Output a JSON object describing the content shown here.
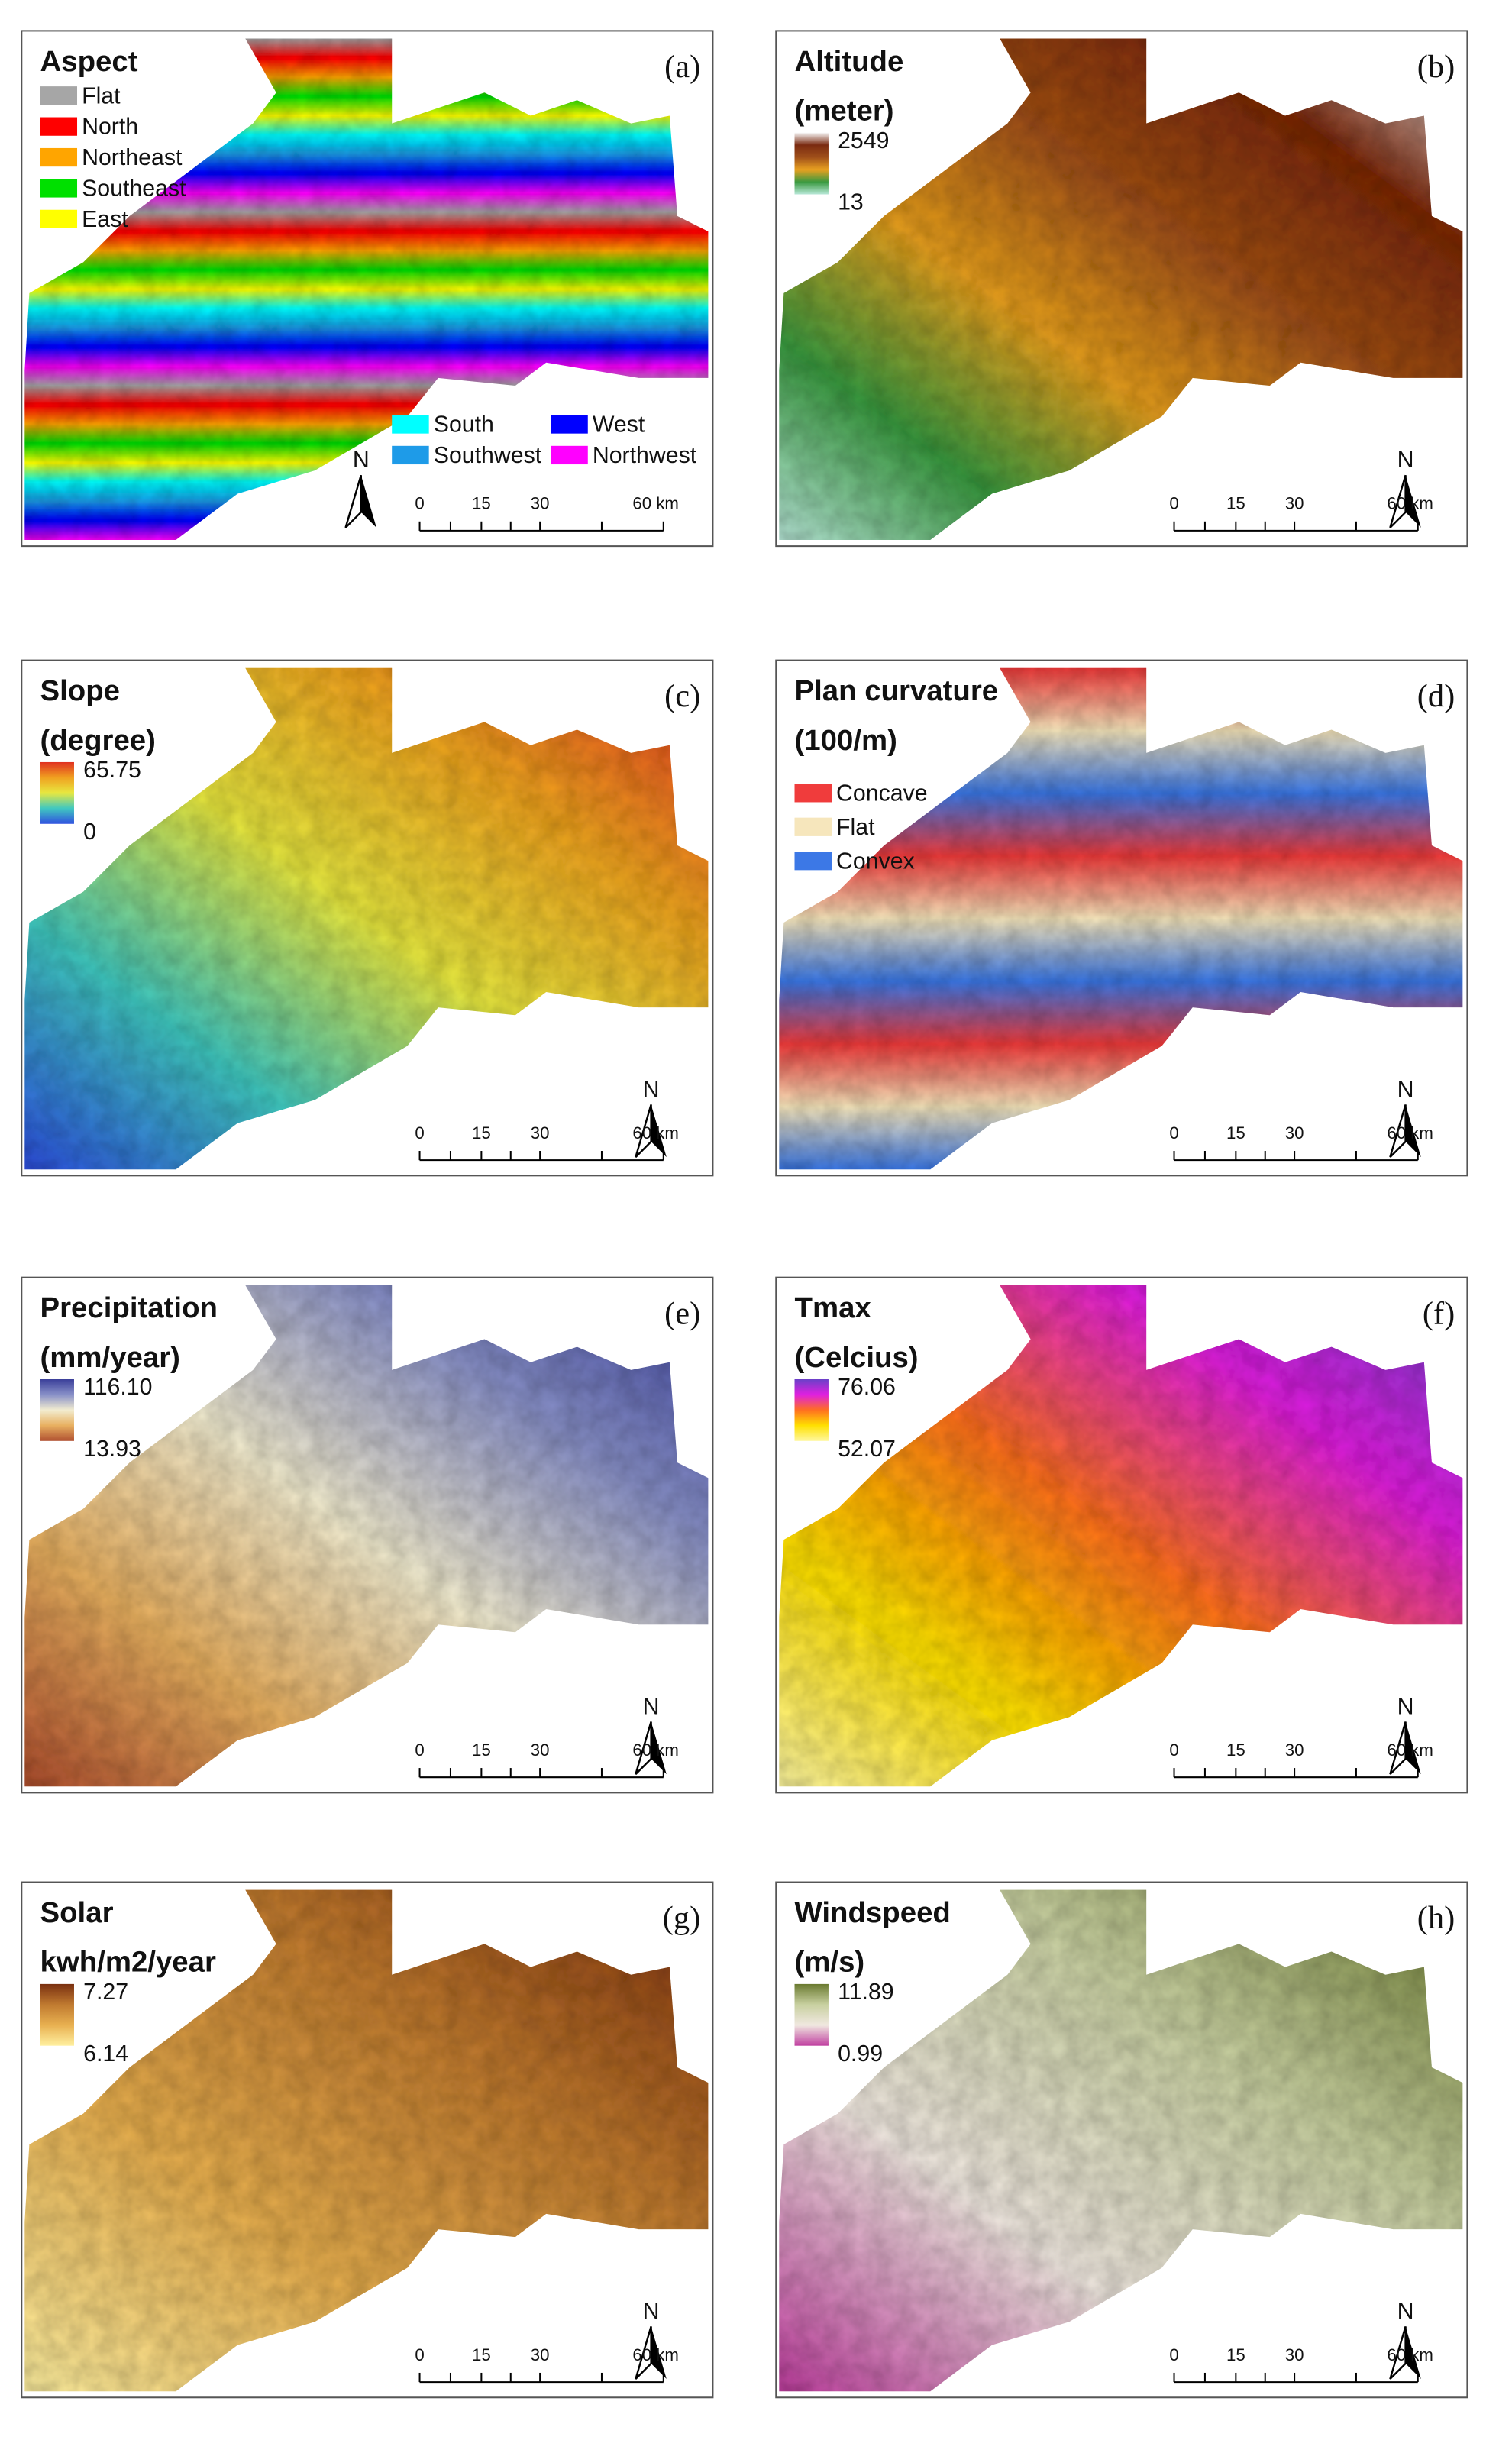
{
  "figure": {
    "north": "N",
    "scale_labels": [
      "0",
      "15",
      "30",
      "60 km"
    ],
    "panels": [
      {
        "letter": "(a)",
        "title": "Aspect",
        "classes": [
          {
            "label": "Flat",
            "color": "#a6a6a6"
          },
          {
            "label": "North",
            "color": "#ff0000"
          },
          {
            "label": "Northeast",
            "color": "#ffa500"
          },
          {
            "label": "Southeast",
            "color": "#00e000"
          },
          {
            "label": "East",
            "color": "#ffff00"
          },
          {
            "label": "South",
            "color": "#00ffff"
          },
          {
            "label": "Southwest",
            "color": "#1e9be8"
          },
          {
            "label": "West",
            "color": "#0000ff"
          },
          {
            "label": "Northwest",
            "color": "#ff00ff"
          }
        ]
      },
      {
        "letter": "(b)",
        "title": "Altitude",
        "unit": "(meter)",
        "max": "2549",
        "min": "13",
        "colors": [
          "#f8f8f8",
          "#7a2a10",
          "#a0501a",
          "#e8a020",
          "#3a9a40",
          "#b8e8d8"
        ]
      },
      {
        "letter": "(c)",
        "title": "Slope",
        "unit": "(degree)",
        "max": "65.75",
        "min": "0",
        "colors": [
          "#e03020",
          "#f0a020",
          "#e8e840",
          "#40c8c0",
          "#3050e0"
        ]
      },
      {
        "letter": "(d)",
        "title": "Plan curvature",
        "unit": "(100/m)",
        "classes": [
          {
            "label": "Concave",
            "color": "#f03c3c"
          },
          {
            "label": "Flat",
            "color": "#f6e6bc"
          },
          {
            "label": "Convex",
            "color": "#3c78e6"
          }
        ]
      },
      {
        "letter": "(e)",
        "title": "Precipitation",
        "unit": "(mm/year)",
        "max": "116.10",
        "min": "13.93",
        "colors": [
          "#3a3f9a",
          "#8890c8",
          "#f2ecd0",
          "#e8b060",
          "#b05030"
        ]
      },
      {
        "letter": "(f)",
        "title": "Tmax",
        "unit": "(Celcius)",
        "max": "76.06",
        "min": "52.07",
        "colors": [
          "#6a40c8",
          "#e020e0",
          "#ff7020",
          "#ffe000",
          "#fff8a0"
        ]
      },
      {
        "letter": "(g)",
        "title": "Solar",
        "unit": "kwh/m2/year",
        "max": "7.27",
        "min": "6.14",
        "colors": [
          "#7a3010",
          "#c07a30",
          "#e8b050",
          "#fff0a0"
        ]
      },
      {
        "letter": "(h)",
        "title": "Windspeed",
        "unit": "(m/s)",
        "max": "11.89",
        "min": "0.99",
        "colors": [
          "#6a7a30",
          "#c8d0a0",
          "#f0e8e0",
          "#c040a0"
        ]
      }
    ]
  }
}
